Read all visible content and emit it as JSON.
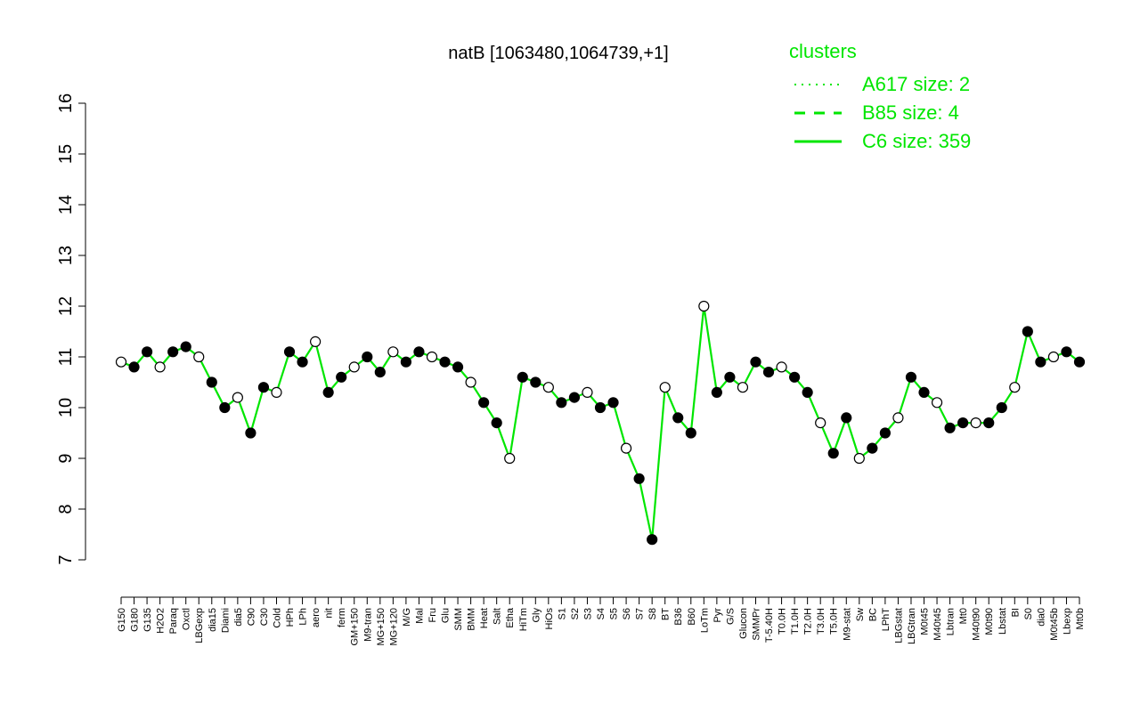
{
  "chart_data": {
    "type": "line",
    "title": "natB [1063480,1064739,+1]",
    "xlabel": "",
    "ylabel": "",
    "ylim": [
      7,
      16
    ],
    "yticks": [
      7,
      8,
      9,
      10,
      11,
      12,
      13,
      14,
      15,
      16
    ],
    "grid": false,
    "legend_position": "top-right",
    "legend": {
      "title": "clusters",
      "entries": [
        {
          "label": "A617 size: 2",
          "style": "dotted"
        },
        {
          "label": "B85 size: 4",
          "style": "dashed"
        },
        {
          "label": "C6 size: 359",
          "style": "solid"
        }
      ]
    },
    "categories": [
      "G150",
      "G180",
      "G135",
      "H2O2",
      "Paraq",
      "Oxctl",
      "LBGexp",
      "dia15",
      "Diami",
      "dia5",
      "C90",
      "C30",
      "Cold",
      "HPh",
      "LPh",
      "aero",
      "nit",
      "ferm",
      "GM+150",
      "M9-tran",
      "MG+150",
      "MG+120",
      "M/G",
      "Mal",
      "Fru",
      "Glu",
      "SMM",
      "BMM",
      "Heat",
      "Salt",
      "Etha",
      "HiTm",
      "Gly",
      "HiOs",
      "S1",
      "S2",
      "S3",
      "S4",
      "S5",
      "S6",
      "S7",
      "S8",
      "BT",
      "B36",
      "B60",
      "LoTm",
      "Pyr",
      "G/S",
      "Glucon",
      "SMMPr",
      "T-5.40H",
      "T0.0H",
      "T1.0H",
      "T2.0H",
      "T3.0H",
      "T5.0H",
      "M9-stat",
      "Sw",
      "BC",
      "LPhT",
      "LBGstat",
      "LBGtran",
      "M0t45",
      "M40t45",
      "Lbtran",
      "Mt0",
      "M40t90",
      "M0t90",
      "Lbstat",
      "BI",
      "S0",
      "dia0",
      "M0t45b",
      "Lbexp",
      "Mt0b"
    ],
    "series": [
      {
        "values": [
          10.9,
          10.8,
          11.1,
          10.8,
          11.1,
          11.2,
          11.0,
          10.5,
          10.0,
          10.2,
          9.5,
          10.4,
          10.3,
          11.1,
          10.9,
          11.3,
          10.3,
          10.6,
          10.8,
          11.0,
          10.7,
          11.1,
          10.9,
          11.1,
          11.0,
          10.9,
          10.8,
          10.5,
          10.1,
          9.7,
          9.0,
          10.6,
          10.5,
          10.4,
          10.1,
          10.2,
          10.3,
          10.0,
          10.1,
          9.2,
          8.6,
          7.4,
          10.4,
          9.8,
          9.5,
          12.0,
          10.3,
          10.6,
          10.4,
          10.9,
          10.7,
          10.8,
          10.6,
          10.3,
          9.7,
          9.1,
          9.8,
          9.0,
          9.2,
          9.5,
          9.8,
          10.6,
          10.3,
          10.1,
          9.6,
          9.7,
          9.7,
          9.7,
          10.0,
          10.4,
          11.5,
          10.9,
          11.0,
          11.1,
          10.9
        ]
      }
    ]
  }
}
